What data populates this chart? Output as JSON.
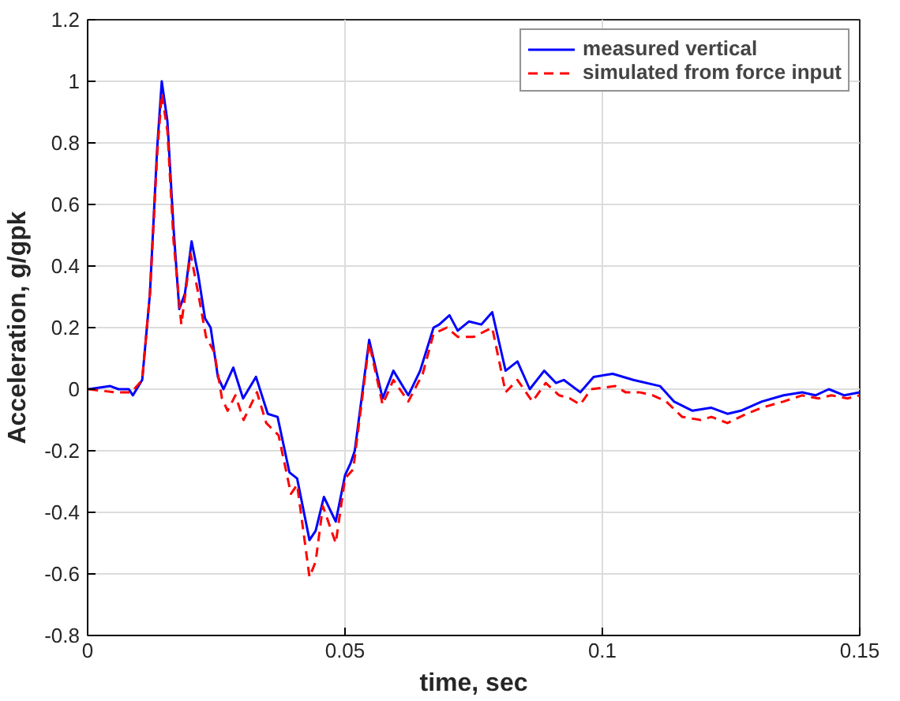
{
  "chart_data": {
    "type": "line",
    "xlabel": "time, sec",
    "ylabel": "Acceleration, g/gpk",
    "xlim": [
      0,
      0.15
    ],
    "ylim": [
      -0.8,
      1.2
    ],
    "xticks": [
      0,
      0.05,
      0.1,
      0.15
    ],
    "yticks": [
      -0.8,
      -0.6,
      -0.4,
      -0.2,
      0,
      0.2,
      0.4,
      0.6,
      0.8,
      1,
      1.2
    ],
    "grid": true,
    "legend": "top right",
    "series": [
      {
        "name": "measured vertical",
        "color": "#0000ff",
        "line_style": "solid",
        "x": [
          0.0002,
          0.0044,
          0.006,
          0.008,
          0.0088,
          0.0106,
          0.0121,
          0.0135,
          0.0144,
          0.0155,
          0.0167,
          0.0178,
          0.0189,
          0.0202,
          0.0215,
          0.0228,
          0.0239,
          0.0253,
          0.0264,
          0.0283,
          0.0302,
          0.0327,
          0.035,
          0.0369,
          0.0392,
          0.0407,
          0.0431,
          0.0443,
          0.0459,
          0.0482,
          0.05,
          0.0511,
          0.0519,
          0.0547,
          0.0573,
          0.0594,
          0.0623,
          0.0646,
          0.0672,
          0.0683,
          0.0703,
          0.0719,
          0.0741,
          0.0765,
          0.0786,
          0.0812,
          0.0835,
          0.0859,
          0.0887,
          0.091,
          0.0925,
          0.0957,
          0.0983,
          0.102,
          0.106,
          0.1112,
          0.1139,
          0.1175,
          0.1211,
          0.1243,
          0.1269,
          0.131,
          0.1352,
          0.1388,
          0.1414,
          0.144,
          0.147,
          0.15
        ],
        "values": [
          0,
          0.01,
          0,
          0,
          -0.02,
          0.03,
          0.31,
          0.78,
          1.0,
          0.87,
          0.52,
          0.26,
          0.31,
          0.48,
          0.37,
          0.23,
          0.2,
          0.04,
          0,
          0.07,
          -0.03,
          0.04,
          -0.08,
          -0.09,
          -0.27,
          -0.29,
          -0.49,
          -0.46,
          -0.35,
          -0.43,
          -0.28,
          -0.24,
          -0.2,
          0.16,
          -0.03,
          0.06,
          -0.02,
          0.06,
          0.2,
          0.21,
          0.24,
          0.19,
          0.22,
          0.21,
          0.25,
          0.06,
          0.09,
          0.0,
          0.06,
          0.02,
          0.03,
          -0.01,
          0.04,
          0.05,
          0.03,
          0.01,
          -0.04,
          -0.07,
          -0.06,
          -0.08,
          -0.07,
          -0.04,
          -0.02,
          -0.01,
          -0.02,
          0,
          -0.02,
          -0.01
        ]
      },
      {
        "name": "simulated from force input",
        "color": "#ff0000",
        "line_style": "dashed",
        "x": [
          0.0002,
          0.0052,
          0.0085,
          0.0106,
          0.0121,
          0.0135,
          0.0144,
          0.0155,
          0.0167,
          0.0182,
          0.02,
          0.0215,
          0.023,
          0.0246,
          0.0261,
          0.0272,
          0.0287,
          0.0303,
          0.0329,
          0.0347,
          0.0371,
          0.0395,
          0.0407,
          0.0431,
          0.0443,
          0.0457,
          0.0482,
          0.05,
          0.0516,
          0.0547,
          0.0573,
          0.0594,
          0.0623,
          0.0651,
          0.0672,
          0.0698,
          0.0719,
          0.075,
          0.0786,
          0.0812,
          0.0835,
          0.0864,
          0.089,
          0.0916,
          0.0937,
          0.0957,
          0.0978,
          0.1025,
          0.1045,
          0.1072,
          0.1098,
          0.1124,
          0.1155,
          0.1191,
          0.1212,
          0.1243,
          0.128,
          0.131,
          0.1352,
          0.1388,
          0.142,
          0.1445,
          0.1476,
          0.15
        ],
        "values": [
          0,
          -0.01,
          -0.01,
          0.03,
          0.31,
          0.76,
          0.96,
          0.84,
          0.48,
          0.21,
          0.44,
          0.31,
          0.17,
          0.12,
          -0.03,
          -0.07,
          -0.02,
          -0.1,
          -0.01,
          -0.11,
          -0.15,
          -0.34,
          -0.31,
          -0.61,
          -0.56,
          -0.38,
          -0.5,
          -0.29,
          -0.26,
          0.15,
          -0.05,
          0.03,
          -0.04,
          0.05,
          0.18,
          0.2,
          0.17,
          0.17,
          0.2,
          -0.01,
          0.03,
          -0.04,
          0.02,
          -0.02,
          -0.03,
          -0.05,
          0,
          0.01,
          -0.01,
          -0.01,
          -0.02,
          -0.04,
          -0.09,
          -0.1,
          -0.09,
          -0.11,
          -0.08,
          -0.06,
          -0.04,
          -0.02,
          -0.03,
          -0.02,
          -0.03,
          -0.02
        ]
      }
    ]
  }
}
